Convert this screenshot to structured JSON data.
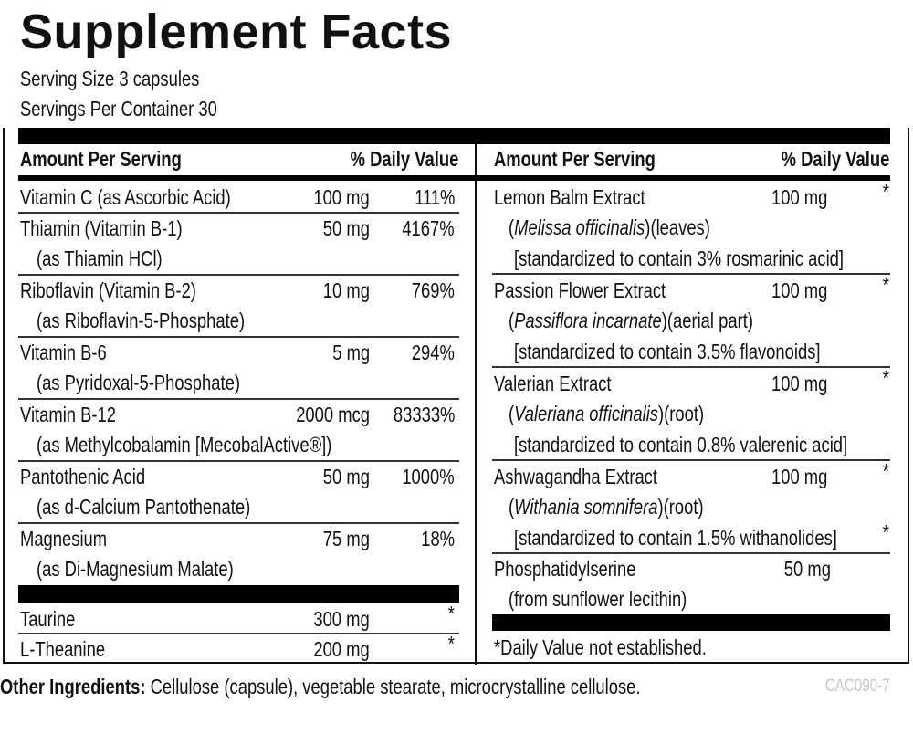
{
  "title": "Supplement Facts",
  "serving_size": "Serving Size 3 capsules",
  "servings_per_container": "Servings Per Container 30",
  "header": {
    "amount": "Amount Per Serving",
    "dv": "% Daily Value"
  },
  "left_items": [
    {
      "name": "Vitamin C (as Ascorbic Acid)",
      "sub": "",
      "amount": "100 mg",
      "dv": "111%"
    },
    {
      "name": "Thiamin (Vitamin B-1)",
      "sub": "(as Thiamin HCl)",
      "amount": "50 mg",
      "dv": "4167%"
    },
    {
      "name": "Riboflavin (Vitamin B-2)",
      "sub": "(as Riboflavin-5-Phosphate)",
      "amount": "10 mg",
      "dv": "769%"
    },
    {
      "name": "Vitamin B-6",
      "sub": "(as Pyridoxal-5-Phosphate)",
      "amount": "5 mg",
      "dv": "294%"
    },
    {
      "name": "Vitamin B-12",
      "sub": "(as Methylcobalamin [MecobalActive®])",
      "amount": "2000 mcg",
      "dv": "83333%"
    },
    {
      "name": "Pantothenic Acid",
      "sub": "(as d-Calcium Pantothenate)",
      "amount": "50 mg",
      "dv": "1000%"
    },
    {
      "name": "Magnesium",
      "sub": "(as Di-Magnesium Malate)",
      "amount": "75 mg",
      "dv": "18%"
    }
  ],
  "left_extra": [
    {
      "name": "Taurine",
      "amount": "300 mg",
      "dv": "*"
    },
    {
      "name": "L-Theanine",
      "amount": "200 mg",
      "dv": "*"
    }
  ],
  "right_items": [
    {
      "name": "Lemon Balm Extract",
      "latin": "Melissa officinalis",
      "part": "(leaves)",
      "std": "[standardized to contain 3% rosmarinic acid]",
      "amount": "100 mg",
      "dv": "*",
      "std_dv": ""
    },
    {
      "name": "Passion Flower Extract",
      "latin": "Passiflora incarnate",
      "part": "(aerial part)",
      "std": "[standardized to contain 3.5% flavonoids]",
      "amount": "100 mg",
      "dv": "*",
      "std_dv": ""
    },
    {
      "name": "Valerian Extract",
      "latin": "Valeriana officinalis",
      "part": "(root)",
      "std": "[standardized to contain 0.8% valerenic acid]",
      "amount": "100 mg",
      "dv": "*",
      "std_dv": ""
    },
    {
      "name": "Ashwagandha Extract",
      "latin": "Withania somnifera",
      "part": "(root)",
      "std": "[standardized to contain 1.5% withanolides]",
      "amount": "100 mg",
      "dv": "*",
      "std_dv": "*"
    }
  ],
  "phosphatidylserine": {
    "name": "Phosphatidylserine",
    "sub": "(from sunflower lecithin)",
    "amount": "50 mg"
  },
  "footnote": "*Daily Value not established.",
  "other_label": "Other Ingredients:",
  "other_text": " Cellulose (capsule), vegetable stearate, microcrystalline cellulose.",
  "code": "CAC090-7"
}
